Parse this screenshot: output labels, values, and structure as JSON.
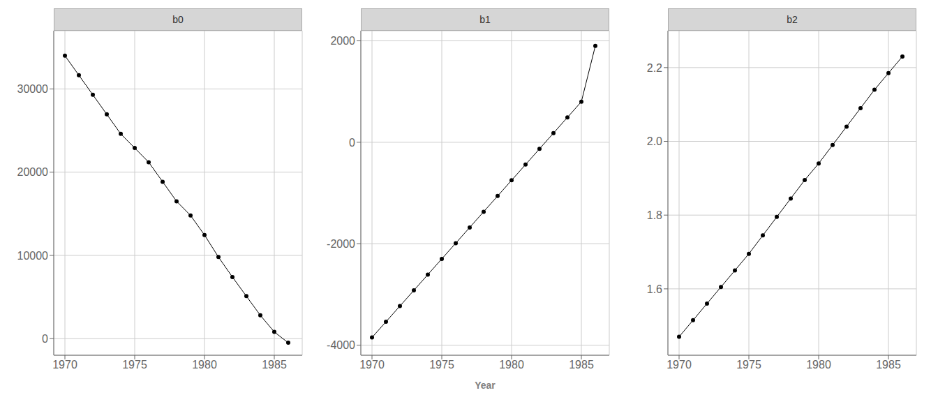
{
  "chart_data": [
    {
      "type": "line",
      "title": "b0",
      "color": "#000000",
      "marker": "circle",
      "grid": true,
      "x": [
        1970,
        1971,
        1972,
        1973,
        1974,
        1975,
        1976,
        1977,
        1978,
        1979,
        1980,
        1981,
        1982,
        1983,
        1984,
        1985,
        1986
      ],
      "values": [
        34000,
        31650,
        29300,
        26950,
        24600,
        22900,
        21200,
        18850,
        16500,
        14800,
        12450,
        9800,
        7400,
        5100,
        2800,
        800,
        -500
      ],
      "xlim": [
        1969.2,
        1987.0
      ],
      "xticks": [
        1970,
        1975,
        1980,
        1985
      ],
      "ylim": [
        -2000,
        37000
      ],
      "yticks": [
        0,
        10000,
        20000,
        30000
      ]
    },
    {
      "type": "line",
      "title": "b1",
      "x_label": "Year",
      "color": "#000000",
      "marker": "circle",
      "grid": true,
      "x": [
        1970,
        1971,
        1972,
        1973,
        1974,
        1975,
        1976,
        1977,
        1978,
        1979,
        1980,
        1981,
        1982,
        1983,
        1984,
        1985,
        1986
      ],
      "values": [
        -3850,
        -3540,
        -3230,
        -2920,
        -2610,
        -2300,
        -1990,
        -1680,
        -1370,
        -1060,
        -750,
        -440,
        -130,
        180,
        490,
        800,
        1900
      ],
      "xlim": [
        1969.2,
        1987.0
      ],
      "xticks": [
        1970,
        1975,
        1980,
        1985
      ],
      "ylim": [
        -4200,
        2200
      ],
      "yticks": [
        -4000,
        -2000,
        0,
        2000
      ]
    },
    {
      "type": "line",
      "title": "b2",
      "color": "#000000",
      "marker": "circle",
      "grid": true,
      "x": [
        1970,
        1971,
        1972,
        1973,
        1974,
        1975,
        1976,
        1977,
        1978,
        1979,
        1980,
        1981,
        1982,
        1983,
        1984,
        1985,
        1986
      ],
      "values": [
        1.47,
        1.515,
        1.56,
        1.605,
        1.65,
        1.695,
        1.745,
        1.795,
        1.845,
        1.895,
        1.94,
        1.99,
        2.04,
        2.09,
        2.14,
        2.185,
        2.23
      ],
      "xlim": [
        1969.2,
        1987.0
      ],
      "xticks": [
        1970,
        1975,
        1980,
        1985
      ],
      "ylim": [
        1.42,
        2.3
      ],
      "yticks": [
        1.6,
        1.8,
        {
          "value": 2.0,
          "label": "2.0"
        },
        2.2
      ]
    }
  ]
}
